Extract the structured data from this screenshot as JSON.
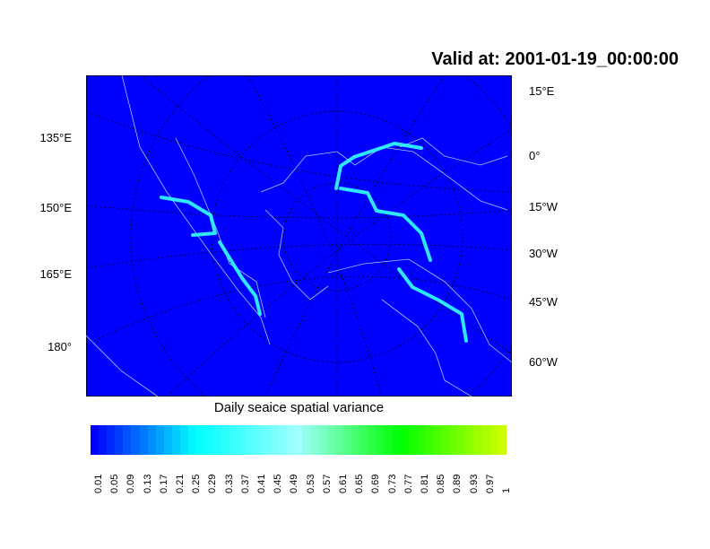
{
  "title": "Valid at: 2001-01-19_00:00:00",
  "map": {
    "background_color": "#0000ff",
    "coast_color": "#a0c8ff",
    "ice_edge_color": "#33ffff"
  },
  "left_labels": [
    "135°E",
    "150°E",
    "165°E",
    "180°"
  ],
  "right_labels": [
    "15°E",
    "0°",
    "15°W",
    "30°W",
    "45°W",
    "60°W"
  ],
  "colorbar": {
    "label": "Daily seaice spatial variance",
    "tick_labels": [
      "0.01",
      "0.05",
      "0.09",
      "0.13",
      "0.17",
      "0.21",
      "0.25",
      "0.29",
      "0.33",
      "0.37",
      "0.41",
      "0.45",
      "0.49",
      "0.53",
      "0.57",
      "0.61",
      "0.65",
      "0.69",
      "0.73",
      "0.77",
      "0.81",
      "0.85",
      "0.89",
      "0.93",
      "0.97",
      "1"
    ],
    "color_stops": [
      "#0000ff",
      "#00ffff",
      "#a0ffff",
      "#00ff00",
      "#ccff00"
    ]
  }
}
